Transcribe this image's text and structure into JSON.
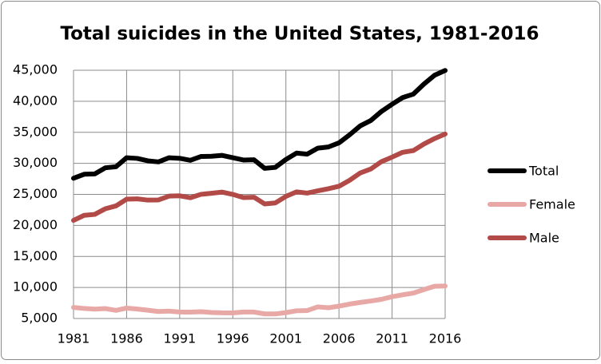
{
  "chart_data": {
    "type": "line",
    "title": "Total suicides in the United States, 1981-2016",
    "x": [
      1981,
      1982,
      1983,
      1984,
      1985,
      1986,
      1987,
      1988,
      1989,
      1990,
      1991,
      1992,
      1993,
      1994,
      1995,
      1996,
      1997,
      1998,
      1999,
      2000,
      2001,
      2002,
      2003,
      2004,
      2005,
      2006,
      2007,
      2008,
      2009,
      2010,
      2011,
      2012,
      2013,
      2014,
      2015,
      2016
    ],
    "series": [
      {
        "name": "Total",
        "color": "#000000",
        "values": [
          27596,
          28242,
          28295,
          29286,
          29453,
          30904,
          30796,
          30407,
          30232,
          30906,
          30810,
          30484,
          31102,
          31142,
          31284,
          30903,
          30535,
          30575,
          29199,
          29350,
          30622,
          31655,
          31484,
          32439,
          32637,
          33300,
          34598,
          36035,
          36909,
          38364,
          39518,
          40600,
          41149,
          42773,
          44193,
          44965
        ]
      },
      {
        "name": "Female",
        "color": "#e8a8a6",
        "values": [
          6787,
          6617,
          6518,
          6597,
          6308,
          6678,
          6524,
          6329,
          6130,
          6182,
          6041,
          6027,
          6095,
          5968,
          5915,
          5905,
          6043,
          6037,
          5741,
          5732,
          5950,
          6246,
          6281,
          6873,
          6730,
          6992,
          7329,
          7585,
          7820,
          8087,
          8515,
          8820,
          9094,
          9660,
          10199,
          10238
        ]
      },
      {
        "name": "Male",
        "color": "#b24a48",
        "values": [
          20809,
          21625,
          21777,
          22689,
          23145,
          24226,
          24272,
          24078,
          24102,
          24724,
          24769,
          24457,
          25007,
          25174,
          25369,
          24998,
          24492,
          24538,
          23458,
          23618,
          24672,
          25409,
          25203,
          25566,
          25907,
          26308,
          27269,
          28450,
          29089,
          30277,
          31003,
          31780,
          32055,
          33113,
          33994,
          34727
        ]
      }
    ],
    "xlim": [
      1981,
      2016
    ],
    "xticks": [
      1981,
      1986,
      1991,
      1996,
      2001,
      2006,
      2011,
      2016
    ],
    "ylim": [
      5000,
      45000
    ],
    "yticks": [
      {
        "value": 5000,
        "label": "5,000"
      },
      {
        "value": 10000,
        "label": "10,000"
      },
      {
        "value": 15000,
        "label": "15,000"
      },
      {
        "value": 20000,
        "label": "20,000"
      },
      {
        "value": 25000,
        "label": "25,000"
      },
      {
        "value": 30000,
        "label": "30,000"
      },
      {
        "value": 35000,
        "label": "35,000"
      },
      {
        "value": 40000,
        "label": "40,000"
      },
      {
        "value": 45000,
        "label": "45,000"
      }
    ],
    "grid": true,
    "legend": "right"
  }
}
